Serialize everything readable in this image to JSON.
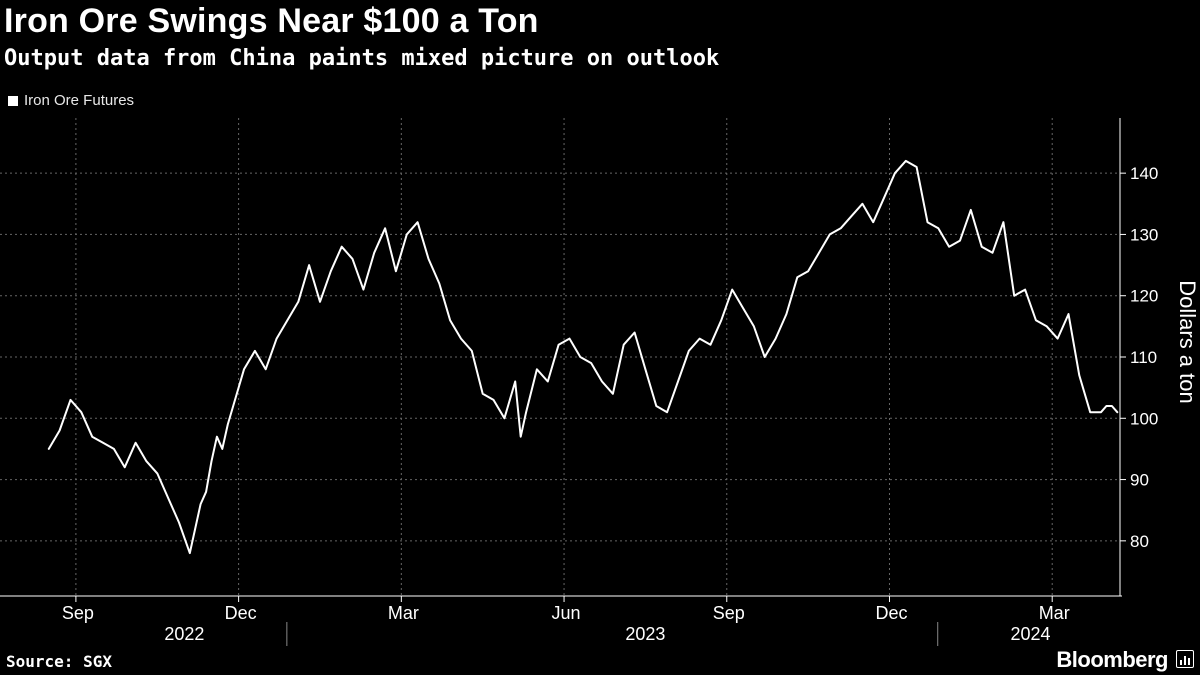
{
  "header": {
    "title": "Iron Ore Swings Near $100 a Ton",
    "subtitle": "Output data from China paints mixed picture on outlook"
  },
  "legend": {
    "label": "Iron Ore Futures"
  },
  "footer": {
    "source": "Source: SGX",
    "brand": "Bloomberg"
  },
  "colors": {
    "background": "#000000",
    "line": "#ffffff",
    "grid": "#666666"
  },
  "chart_data": {
    "type": "line",
    "title": "Iron Ore Swings Near $100 a Ton",
    "subtitle": "Output data from China paints mixed picture on outlook",
    "xlabel": "",
    "ylabel": "Dollars a ton",
    "ylim": [
      71,
      149
    ],
    "yticks": [
      80,
      90,
      100,
      110,
      120,
      130,
      140
    ],
    "x_month_ticks": [
      {
        "label": "Sep",
        "month_index": 0
      },
      {
        "label": "Dec",
        "month_index": 3
      },
      {
        "label": "Mar",
        "month_index": 6
      },
      {
        "label": "Jun",
        "month_index": 9
      },
      {
        "label": "Sep",
        "month_index": 12
      },
      {
        "label": "Dec",
        "month_index": 15
      },
      {
        "label": "Mar",
        "month_index": 18
      }
    ],
    "x_year_labels": [
      {
        "label": "2022",
        "month_index": 2
      },
      {
        "label": "2023",
        "month_index": 10.5
      },
      {
        "label": "2024",
        "month_index": 17.6
      }
    ],
    "x_year_separators": [
      4,
      16
    ],
    "x_range_months": [
      0,
      19.25
    ],
    "grid": true,
    "legend_position": "top-left",
    "series": [
      {
        "name": "Iron Ore Futures",
        "x_months": [
          -0.5,
          -0.3,
          -0.1,
          0.1,
          0.3,
          0.5,
          0.7,
          0.9,
          1.1,
          1.3,
          1.5,
          1.7,
          1.9,
          2.1,
          2.2,
          2.3,
          2.4,
          2.5,
          2.6,
          2.7,
          2.8,
          2.9,
          3.1,
          3.3,
          3.5,
          3.7,
          3.9,
          4.1,
          4.3,
          4.5,
          4.7,
          4.9,
          5.1,
          5.3,
          5.5,
          5.7,
          5.9,
          6.1,
          6.3,
          6.5,
          6.7,
          6.9,
          7.1,
          7.3,
          7.5,
          7.7,
          7.9,
          8.1,
          8.2,
          8.3,
          8.5,
          8.7,
          8.9,
          9.1,
          9.3,
          9.5,
          9.7,
          9.9,
          10.1,
          10.3,
          10.5,
          10.7,
          10.9,
          11.1,
          11.3,
          11.5,
          11.7,
          11.9,
          12.1,
          12.3,
          12.5,
          12.7,
          12.9,
          13.1,
          13.3,
          13.5,
          13.7,
          13.9,
          14.1,
          14.3,
          14.5,
          14.7,
          14.9,
          15.1,
          15.3,
          15.5,
          15.7,
          15.9,
          16.1,
          16.3,
          16.5,
          16.7,
          16.9,
          17.1,
          17.3,
          17.5,
          17.7,
          17.9,
          18.1,
          18.3,
          18.5,
          18.7,
          18.9,
          19.0,
          19.1,
          19.2
        ],
        "values": [
          95,
          98,
          103,
          101,
          97,
          96,
          95,
          92,
          96,
          93,
          91,
          87,
          83,
          78,
          82,
          86,
          88,
          93,
          97,
          95,
          99,
          102,
          108,
          111,
          108,
          113,
          116,
          119,
          125,
          119,
          124,
          128,
          126,
          121,
          127,
          131,
          124,
          130,
          132,
          126,
          122,
          116,
          113,
          111,
          104,
          103,
          100,
          106,
          97,
          101,
          108,
          106,
          112,
          113,
          110,
          109,
          106,
          104,
          112,
          114,
          108,
          102,
          101,
          106,
          111,
          113,
          112,
          116,
          121,
          118,
          115,
          110,
          113,
          117,
          123,
          124,
          127,
          130,
          131,
          133,
          135,
          132,
          136,
          140,
          142,
          141,
          132,
          131,
          128,
          129,
          134,
          128,
          127,
          132,
          120,
          121,
          116,
          115,
          113,
          117,
          107,
          101,
          101,
          102,
          102,
          101
        ]
      }
    ]
  }
}
